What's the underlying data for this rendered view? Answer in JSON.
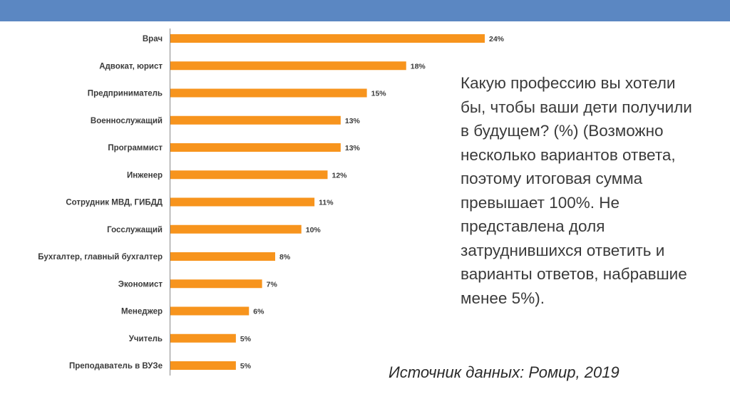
{
  "question": "Какую профессию вы хотели бы, чтобы ваши дети получили в будущем? (%) (Возможно несколько вариантов ответа, поэтому итоговая сумма превышает 100%. Не представлена доля затруднившихся ответить и варианты ответов, набравшие менее 5%).",
  "source": "Источник данных: Ромир, 2019",
  "colors": {
    "bar": "#f7941d",
    "header": "#5b87c2"
  },
  "chart_data": {
    "type": "bar",
    "orientation": "horizontal",
    "categories": [
      "Врач",
      "Адвокат, юрист",
      "Предприниматель",
      "Военнослужащий",
      "Программист",
      "Инженер",
      "Сотрудник МВД, ГИБДД",
      "Госслужащий",
      "Бухгалтер, главный бухгалтер",
      "Экономист",
      "Менеджер",
      "Учитель",
      "Преподаватель в ВУЗе"
    ],
    "values": [
      24,
      18,
      15,
      13,
      13,
      12,
      11,
      10,
      8,
      7,
      6,
      5,
      5
    ],
    "value_labels": [
      "24%",
      "18%",
      "15%",
      "13%",
      "13%",
      "12%",
      "11%",
      "10%",
      "8%",
      "7%",
      "6%",
      "5%",
      "5%"
    ],
    "unit": "%",
    "xlim": [
      0,
      24
    ],
    "grid": false,
    "legend": "none"
  }
}
